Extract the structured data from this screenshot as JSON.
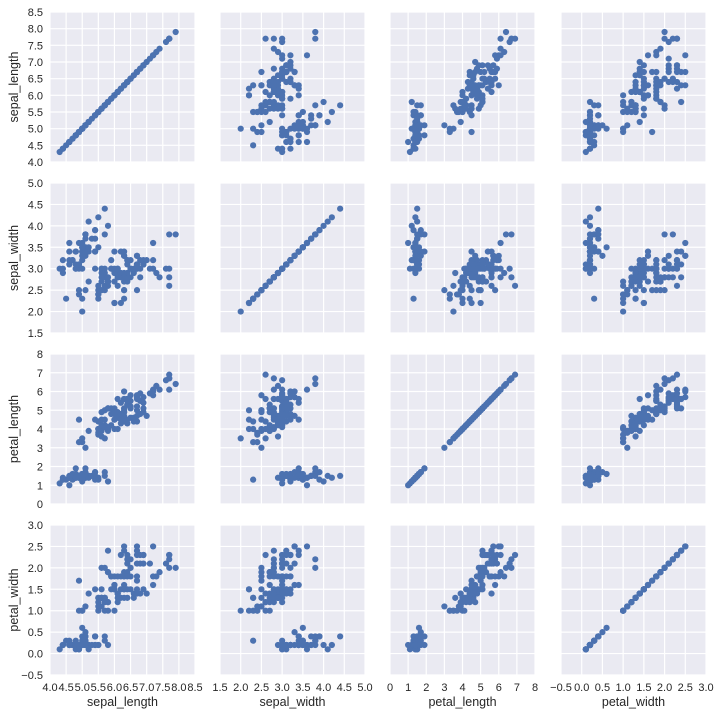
{
  "chart_data": {
    "type": "scatter",
    "layout": "pairplot",
    "grid": true,
    "colors": {
      "point": "#4C72B0",
      "panel_background": "#EAEAF2",
      "grid": "#FFFFFF",
      "text": "#262626"
    },
    "variables": [
      {
        "name": "sepal_length",
        "range": [
          4.0,
          8.5
        ],
        "ticks": [
          4.0,
          4.5,
          5.0,
          5.5,
          6.0,
          6.5,
          7.0,
          7.5,
          8.0,
          8.5
        ],
        "tick_labels": [
          "4.0",
          "4.5",
          "5.0",
          "5.5",
          "6.0",
          "6.5",
          "7.0",
          "7.5",
          "8.0",
          "8.5"
        ]
      },
      {
        "name": "sepal_width",
        "range": [
          1.5,
          5.0
        ],
        "ticks": [
          1.5,
          2.0,
          2.5,
          3.0,
          3.5,
          4.0,
          4.5,
          5.0
        ],
        "tick_labels": [
          "1.5",
          "2.0",
          "2.5",
          "3.0",
          "3.5",
          "4.0",
          "4.5",
          "5.0"
        ]
      },
      {
        "name": "petal_length",
        "range": [
          0,
          8
        ],
        "ticks": [
          0,
          1,
          2,
          3,
          4,
          5,
          6,
          7,
          8
        ],
        "tick_labels": [
          "0",
          "1",
          "2",
          "3",
          "4",
          "5",
          "6",
          "7",
          "8"
        ]
      },
      {
        "name": "petal_width",
        "range": [
          -0.5,
          3.0
        ],
        "ticks": [
          -0.5,
          0.0,
          0.5,
          1.0,
          1.5,
          2.0,
          2.5,
          3.0
        ],
        "tick_labels": [
          "−0.5",
          "0.0",
          "0.5",
          "1.0",
          "1.5",
          "2.0",
          "2.5",
          "3.0"
        ]
      }
    ],
    "columns": [
      "sepal_length",
      "sepal_width",
      "petal_length",
      "petal_width"
    ],
    "rows": [
      [
        5.1,
        3.5,
        1.4,
        0.2
      ],
      [
        4.9,
        3.0,
        1.4,
        0.2
      ],
      [
        4.7,
        3.2,
        1.3,
        0.2
      ],
      [
        4.6,
        3.1,
        1.5,
        0.2
      ],
      [
        5.0,
        3.6,
        1.4,
        0.2
      ],
      [
        5.4,
        3.9,
        1.7,
        0.4
      ],
      [
        4.6,
        3.4,
        1.4,
        0.3
      ],
      [
        5.0,
        3.4,
        1.5,
        0.2
      ],
      [
        4.4,
        2.9,
        1.4,
        0.2
      ],
      [
        4.9,
        3.1,
        1.5,
        0.1
      ],
      [
        5.4,
        3.7,
        1.5,
        0.2
      ],
      [
        4.8,
        3.4,
        1.6,
        0.2
      ],
      [
        4.8,
        3.0,
        1.4,
        0.1
      ],
      [
        4.3,
        3.0,
        1.1,
        0.1
      ],
      [
        5.8,
        4.0,
        1.2,
        0.2
      ],
      [
        5.7,
        4.4,
        1.5,
        0.4
      ],
      [
        5.4,
        3.9,
        1.3,
        0.4
      ],
      [
        5.1,
        3.5,
        1.4,
        0.3
      ],
      [
        5.7,
        3.8,
        1.7,
        0.3
      ],
      [
        5.1,
        3.8,
        1.5,
        0.3
      ],
      [
        5.4,
        3.4,
        1.7,
        0.2
      ],
      [
        5.1,
        3.7,
        1.5,
        0.4
      ],
      [
        4.6,
        3.6,
        1.0,
        0.2
      ],
      [
        5.1,
        3.3,
        1.7,
        0.5
      ],
      [
        4.8,
        3.4,
        1.9,
        0.2
      ],
      [
        5.0,
        3.0,
        1.6,
        0.2
      ],
      [
        5.0,
        3.4,
        1.6,
        0.4
      ],
      [
        5.2,
        3.5,
        1.5,
        0.2
      ],
      [
        5.2,
        3.4,
        1.4,
        0.2
      ],
      [
        4.7,
        3.2,
        1.6,
        0.2
      ],
      [
        4.8,
        3.1,
        1.6,
        0.2
      ],
      [
        5.4,
        3.4,
        1.5,
        0.4
      ],
      [
        5.2,
        4.1,
        1.5,
        0.1
      ],
      [
        5.5,
        4.2,
        1.4,
        0.2
      ],
      [
        4.9,
        3.1,
        1.5,
        0.2
      ],
      [
        5.0,
        3.2,
        1.2,
        0.2
      ],
      [
        5.5,
        3.5,
        1.3,
        0.2
      ],
      [
        4.9,
        3.6,
        1.4,
        0.1
      ],
      [
        4.4,
        3.0,
        1.3,
        0.2
      ],
      [
        5.1,
        3.4,
        1.5,
        0.2
      ],
      [
        5.0,
        3.5,
        1.3,
        0.3
      ],
      [
        4.5,
        2.3,
        1.3,
        0.3
      ],
      [
        4.4,
        3.2,
        1.3,
        0.2
      ],
      [
        5.0,
        3.5,
        1.6,
        0.6
      ],
      [
        5.1,
        3.8,
        1.9,
        0.4
      ],
      [
        4.8,
        3.0,
        1.4,
        0.3
      ],
      [
        5.1,
        3.8,
        1.6,
        0.2
      ],
      [
        4.6,
        3.2,
        1.4,
        0.2
      ],
      [
        5.3,
        3.7,
        1.5,
        0.2
      ],
      [
        5.0,
        3.3,
        1.4,
        0.2
      ],
      [
        7.0,
        3.2,
        4.7,
        1.4
      ],
      [
        6.4,
        3.2,
        4.5,
        1.5
      ],
      [
        6.9,
        3.1,
        4.9,
        1.5
      ],
      [
        5.5,
        2.3,
        4.0,
        1.3
      ],
      [
        6.5,
        2.8,
        4.6,
        1.5
      ],
      [
        5.7,
        2.8,
        4.5,
        1.3
      ],
      [
        6.3,
        3.3,
        4.7,
        1.6
      ],
      [
        4.9,
        2.4,
        3.3,
        1.0
      ],
      [
        6.6,
        2.9,
        4.6,
        1.3
      ],
      [
        5.2,
        2.7,
        3.9,
        1.4
      ],
      [
        5.0,
        2.0,
        3.5,
        1.0
      ],
      [
        5.9,
        3.0,
        4.2,
        1.5
      ],
      [
        6.0,
        2.2,
        4.0,
        1.0
      ],
      [
        6.1,
        2.9,
        4.7,
        1.4
      ],
      [
        5.6,
        2.9,
        3.6,
        1.3
      ],
      [
        6.7,
        3.1,
        4.4,
        1.4
      ],
      [
        5.6,
        3.0,
        4.5,
        1.5
      ],
      [
        5.8,
        2.7,
        4.1,
        1.0
      ],
      [
        6.2,
        2.2,
        4.5,
        1.5
      ],
      [
        5.6,
        2.5,
        3.9,
        1.1
      ],
      [
        5.9,
        3.2,
        4.8,
        1.8
      ],
      [
        6.1,
        2.8,
        4.0,
        1.3
      ],
      [
        6.3,
        2.5,
        4.9,
        1.5
      ],
      [
        6.1,
        2.8,
        4.7,
        1.2
      ],
      [
        6.4,
        2.9,
        4.3,
        1.3
      ],
      [
        6.6,
        3.0,
        4.4,
        1.4
      ],
      [
        6.8,
        2.8,
        4.8,
        1.4
      ],
      [
        6.7,
        3.0,
        5.0,
        1.7
      ],
      [
        6.0,
        2.9,
        4.5,
        1.5
      ],
      [
        5.7,
        2.6,
        3.5,
        1.0
      ],
      [
        5.5,
        2.4,
        3.8,
        1.1
      ],
      [
        5.5,
        2.4,
        3.7,
        1.0
      ],
      [
        5.8,
        2.7,
        3.9,
        1.2
      ],
      [
        6.0,
        2.7,
        5.1,
        1.6
      ],
      [
        5.4,
        3.0,
        4.5,
        1.5
      ],
      [
        6.0,
        3.4,
        4.5,
        1.6
      ],
      [
        6.7,
        3.1,
        4.7,
        1.5
      ],
      [
        6.3,
        2.3,
        4.4,
        1.3
      ],
      [
        5.6,
        3.0,
        4.1,
        1.3
      ],
      [
        5.5,
        2.5,
        4.0,
        1.3
      ],
      [
        5.5,
        2.6,
        4.4,
        1.2
      ],
      [
        6.1,
        3.0,
        4.6,
        1.4
      ],
      [
        5.8,
        2.6,
        4.0,
        1.2
      ],
      [
        5.0,
        2.3,
        3.3,
        1.0
      ],
      [
        5.6,
        2.7,
        4.2,
        1.3
      ],
      [
        5.7,
        3.0,
        4.2,
        1.2
      ],
      [
        5.7,
        2.9,
        4.2,
        1.3
      ],
      [
        6.2,
        2.9,
        4.3,
        1.3
      ],
      [
        5.1,
        2.5,
        3.0,
        1.1
      ],
      [
        5.7,
        2.8,
        4.1,
        1.3
      ],
      [
        6.3,
        3.3,
        6.0,
        2.5
      ],
      [
        5.8,
        2.7,
        5.1,
        1.9
      ],
      [
        7.1,
        3.0,
        5.9,
        2.1
      ],
      [
        6.3,
        2.9,
        5.6,
        1.8
      ],
      [
        6.5,
        3.0,
        5.8,
        2.2
      ],
      [
        7.6,
        3.0,
        6.6,
        2.1
      ],
      [
        4.9,
        2.5,
        4.5,
        1.7
      ],
      [
        7.3,
        2.9,
        6.3,
        1.8
      ],
      [
        6.7,
        2.5,
        5.8,
        1.8
      ],
      [
        7.2,
        3.6,
        6.1,
        2.5
      ],
      [
        6.5,
        3.2,
        5.1,
        2.0
      ],
      [
        6.4,
        2.7,
        5.3,
        1.9
      ],
      [
        6.8,
        3.0,
        5.5,
        2.1
      ],
      [
        5.7,
        2.5,
        5.0,
        2.0
      ],
      [
        5.8,
        2.8,
        5.1,
        2.4
      ],
      [
        6.4,
        3.2,
        5.3,
        2.3
      ],
      [
        6.5,
        3.0,
        5.5,
        1.8
      ],
      [
        7.7,
        3.8,
        6.7,
        2.2
      ],
      [
        7.7,
        2.6,
        6.9,
        2.3
      ],
      [
        6.0,
        2.2,
        5.0,
        1.5
      ],
      [
        6.9,
        3.2,
        5.7,
        2.3
      ],
      [
        5.6,
        2.8,
        4.9,
        2.0
      ],
      [
        7.7,
        2.8,
        6.7,
        2.0
      ],
      [
        6.3,
        2.7,
        4.9,
        1.8
      ],
      [
        6.7,
        3.3,
        5.7,
        2.1
      ],
      [
        7.2,
        3.2,
        6.0,
        1.8
      ],
      [
        6.2,
        2.8,
        4.8,
        1.8
      ],
      [
        6.1,
        3.0,
        4.9,
        1.8
      ],
      [
        6.4,
        2.8,
        5.6,
        2.1
      ],
      [
        7.2,
        3.0,
        5.8,
        1.6
      ],
      [
        7.4,
        2.8,
        6.1,
        1.9
      ],
      [
        7.9,
        3.8,
        6.4,
        2.0
      ],
      [
        6.4,
        2.8,
        5.6,
        2.2
      ],
      [
        6.3,
        2.8,
        5.1,
        1.5
      ],
      [
        6.1,
        2.6,
        5.6,
        1.4
      ],
      [
        7.7,
        3.0,
        6.1,
        2.3
      ],
      [
        6.3,
        3.4,
        5.6,
        2.4
      ],
      [
        6.4,
        3.1,
        5.5,
        1.8
      ],
      [
        6.0,
        3.0,
        4.8,
        1.8
      ],
      [
        6.9,
        3.1,
        5.4,
        2.1
      ],
      [
        6.7,
        3.1,
        5.6,
        2.4
      ],
      [
        6.9,
        3.1,
        5.1,
        2.3
      ],
      [
        5.8,
        2.7,
        5.1,
        1.9
      ],
      [
        6.8,
        3.2,
        5.9,
        2.3
      ],
      [
        6.7,
        3.3,
        5.7,
        2.5
      ],
      [
        6.7,
        3.0,
        5.2,
        2.3
      ],
      [
        6.3,
        2.5,
        5.0,
        1.9
      ],
      [
        6.5,
        3.0,
        5.2,
        2.0
      ],
      [
        6.2,
        3.4,
        5.4,
        2.3
      ],
      [
        5.9,
        3.0,
        5.1,
        1.8
      ]
    ]
  }
}
